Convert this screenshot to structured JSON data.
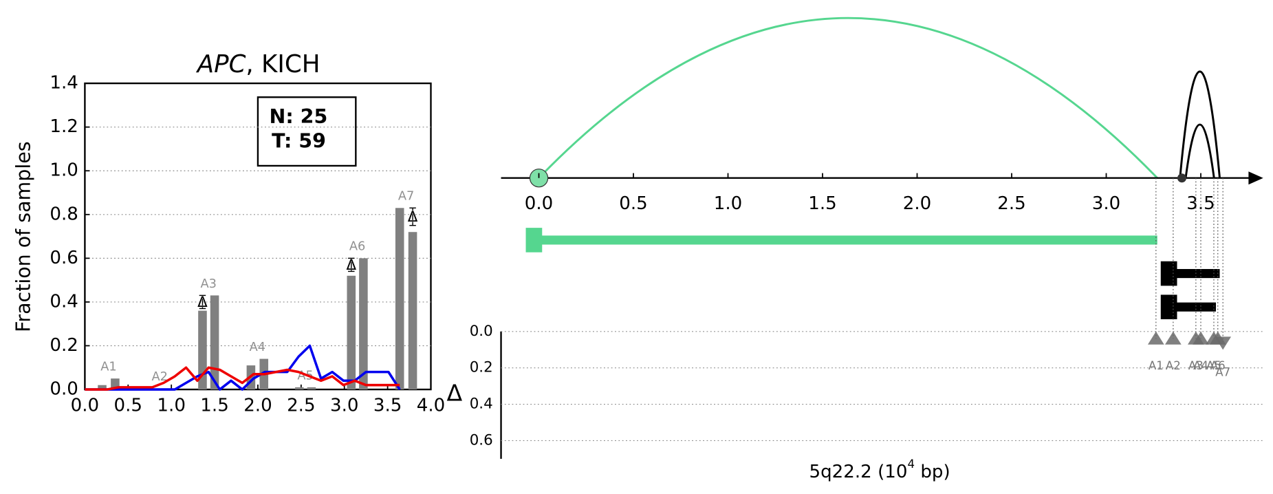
{
  "chart_data": [
    {
      "type": "bar",
      "title_parts": [
        "APC",
        ", KICH"
      ],
      "ylabel": "Fraction of samples",
      "xlim": [
        0,
        4
      ],
      "ylim": [
        0,
        1.4
      ],
      "xticks": [
        {
          "value": 0,
          "label": "0.0"
        },
        0.5,
        {
          "value": 1,
          "label": "1.0"
        },
        1.5,
        {
          "value": 2,
          "label": "2.0"
        },
        2.5,
        {
          "value": 3,
          "label": "3.0"
        },
        3.5,
        {
          "value": 4,
          "label": "4.0"
        }
      ],
      "yticks": [
        {
          "value": 0,
          "label": "0.0"
        },
        0.2,
        0.4,
        0.6,
        0.8,
        {
          "value": 1,
          "label": "1.0"
        },
        1.2,
        1.4
      ],
      "grid": true,
      "annotation": [
        "N: 25",
        "T: 59"
      ],
      "bars": {
        "color": "#808080",
        "x": [
          0.2,
          0.35,
          0.8,
          0.93,
          1.36,
          1.5,
          1.92,
          2.07,
          2.48,
          2.62,
          3.08,
          3.22,
          3.64,
          3.79
        ],
        "values": [
          0.02,
          0.05,
          0.005,
          0.005,
          0.36,
          0.43,
          0.11,
          0.14,
          0.01,
          0.01,
          0.52,
          0.6,
          0.83,
          0.72
        ]
      },
      "groups": {
        "labels": [
          "A1",
          "A2",
          "A3",
          "A4",
          "A5",
          "A6",
          "A7"
        ],
        "color": "#909090"
      },
      "delta": {
        "label": "Δ",
        "x": [
          1.36,
          3.08,
          3.79
        ],
        "values": [
          0.4,
          0.57,
          0.79
        ],
        "errors": [
          0.03,
          0.03,
          0.04
        ]
      },
      "lines": {
        "x": [
          0,
          0.13,
          0.26,
          0.39,
          0.52,
          0.65,
          0.78,
          0.91,
          1.04,
          1.17,
          1.3,
          1.43,
          1.56,
          1.69,
          1.82,
          1.95,
          2.08,
          2.21,
          2.34,
          2.47,
          2.6,
          2.73,
          2.86,
          2.99,
          3.12,
          3.25,
          3.38,
          3.51,
          3.64
        ],
        "series": [
          {
            "color": "#0000ee",
            "values": [
              0,
              0,
              0,
              0,
              0,
              0,
              0,
              0,
              0,
              0.03,
              0.06,
              0.08,
              0,
              0.04,
              0,
              0.05,
              0.08,
              0.08,
              0.08,
              0.15,
              0.2,
              0.05,
              0.08,
              0.04,
              0.04,
              0.08,
              0.08,
              0.08,
              0
            ]
          },
          {
            "color": "#ee0000",
            "values": [
              0,
              0,
              0,
              0.01,
              0.01,
              0.01,
              0.01,
              0.03,
              0.06,
              0.1,
              0.04,
              0.1,
              0.09,
              0.06,
              0.03,
              0.07,
              0.07,
              0.08,
              0.09,
              0.08,
              0.06,
              0.04,
              0.06,
              0.02,
              0.04,
              0.02,
              0.02,
              0.02,
              0.02
            ]
          }
        ]
      }
    },
    {
      "type": "arc",
      "xlim": [
        -0.2,
        3.83
      ],
      "xticks": [
        {
          "value": 0,
          "label": "0.0"
        },
        0.5,
        {
          "value": 1,
          "label": "1.0"
        },
        1.5,
        {
          "value": 2,
          "label": "2.0"
        },
        2.5,
        {
          "value": 3,
          "label": "3.0"
        },
        3.5
      ],
      "xlabel_parts": [
        "5q22.2 (10",
        "4",
        " bp)"
      ],
      "ylabel": "Δ",
      "ylim": [
        0,
        0.7
      ],
      "yticks": [
        {
          "value": 0,
          "label": "0.0"
        },
        0.2,
        0.4,
        0.6
      ],
      "arcs": [
        {
          "start": 0,
          "end": 3.27,
          "color": "#55d68f"
        },
        {
          "start": 3.39,
          "end": 3.6,
          "color": "#000000"
        },
        {
          "start": 3.42,
          "end": 3.57,
          "color": "#000000"
        }
      ],
      "nodes": [
        {
          "x": 0,
          "color": "#7fe0a8"
        },
        {
          "x": 3.4,
          "color": "#333333"
        }
      ],
      "tracks": [
        {
          "start": 0,
          "end": 3.27,
          "color": "#55d68f"
        },
        {
          "start": 3.34,
          "end": 3.6,
          "color": "#000000"
        },
        {
          "start": 3.34,
          "end": 3.58,
          "color": "#000000"
        }
      ],
      "exons": {
        "labels": [
          "A1",
          "A2",
          "A3",
          "A4",
          "A5",
          "A6",
          "A7"
        ],
        "x": [
          3.263,
          3.354,
          3.474,
          3.5,
          3.569,
          3.59,
          3.617
        ],
        "values": [
          0.04,
          0.04,
          0.04,
          0.04,
          0.04,
          0.04,
          0.06
        ],
        "markers": [
          "up",
          "up",
          "up",
          "up",
          "up",
          "up",
          "down"
        ],
        "color": "#6a6a6a"
      }
    }
  ]
}
